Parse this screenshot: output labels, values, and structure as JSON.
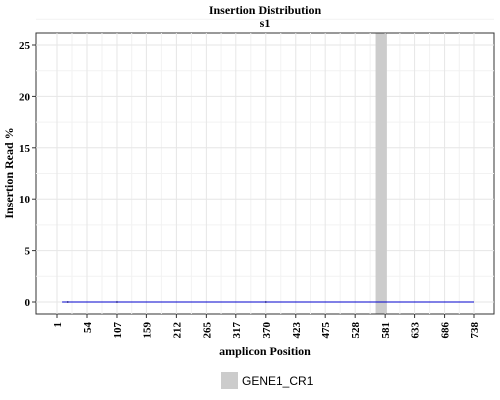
{
  "chart_data": {
    "type": "line",
    "title": "Insertion Distribution",
    "subtitle": "s1",
    "xlabel": "amplicon Position",
    "ylabel": "Insertion Read  %",
    "xlim": [
      1,
      738
    ],
    "ylim": [
      0,
      25
    ],
    "x_ticks": [
      1,
      54,
      107,
      159,
      212,
      265,
      317,
      370,
      423,
      475,
      528,
      581,
      633,
      686,
      738
    ],
    "y_ticks": [
      0,
      5,
      10,
      15,
      20,
      25
    ],
    "grid": true,
    "series": [
      {
        "color": "#0000cc",
        "x": [
          10,
          20,
          107,
          370,
          738
        ],
        "y": [
          0,
          0,
          0,
          0,
          0
        ],
        "points": [
          {
            "x": 20,
            "y": 0
          },
          {
            "x": 107,
            "y": 0
          },
          {
            "x": 370,
            "y": 0
          }
        ]
      }
    ],
    "regions": [
      {
        "name": "GENE1_CR1",
        "start": 564,
        "end": 584,
        "color": "#cccccc"
      }
    ],
    "legend": {
      "placement": "bottom",
      "entries": [
        {
          "label": "GENE1_CR1",
          "color": "#cccccc"
        }
      ]
    }
  }
}
